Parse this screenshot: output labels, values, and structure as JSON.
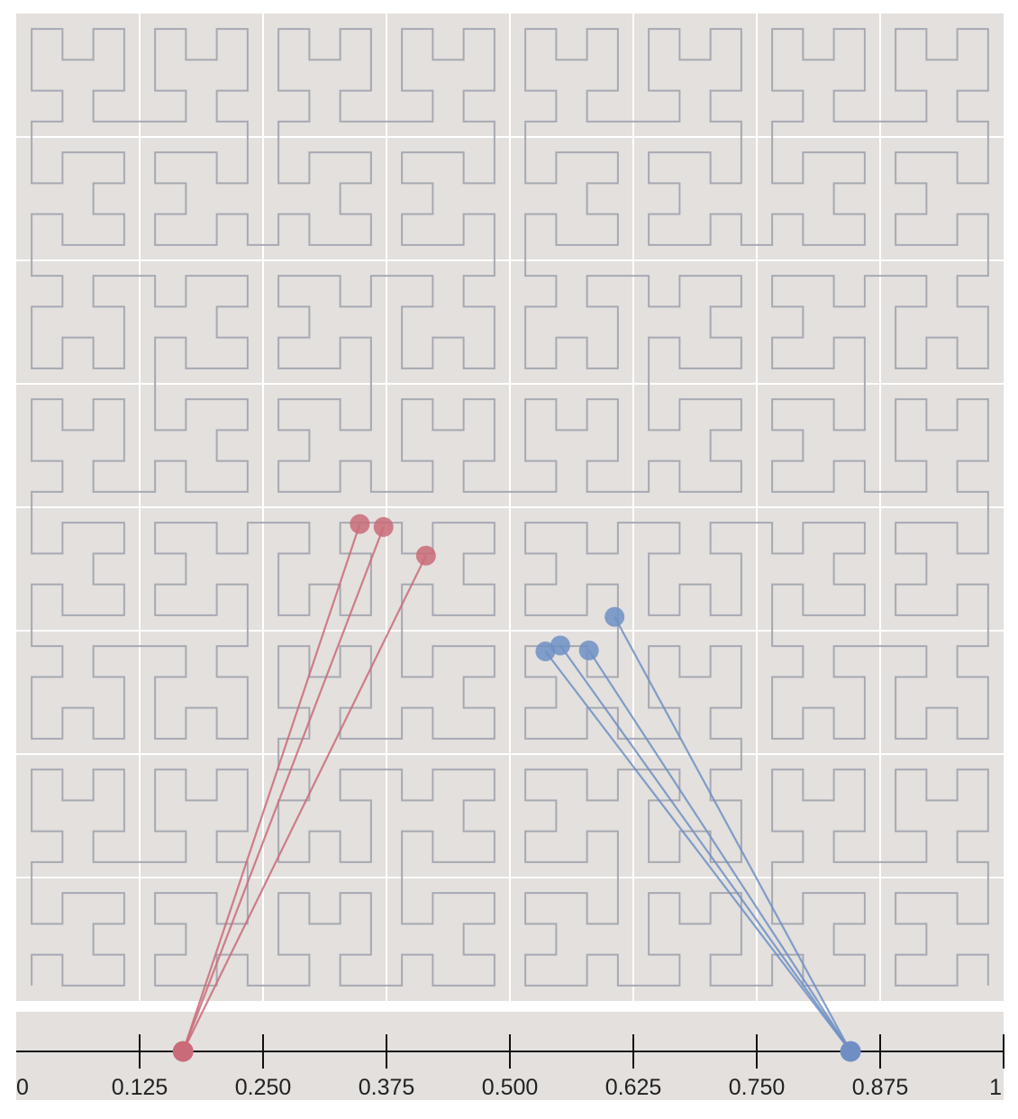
{
  "curve": {
    "type": "hilbert",
    "order": 5,
    "stroke_color": "#a7a9b3",
    "panel_color": "#e3e0dd",
    "grid_color": "#ffffff",
    "grid_divisions": 8
  },
  "axis": {
    "min": 0,
    "max": 1,
    "major_ticks": [
      0.125,
      0.25,
      0.375,
      0.5,
      0.625,
      0.75,
      0.875,
      1
    ],
    "tick_labels": [
      "0",
      "0.125",
      "0.250",
      "0.375",
      "0.500",
      "0.625",
      "0.750",
      "0.875",
      "1"
    ]
  },
  "groups": [
    {
      "name": "red",
      "color": "#c96b78",
      "line_position": 0.169,
      "points": [
        {
          "x": 0.348,
          "y": 0.483
        },
        {
          "x": 0.372,
          "y": 0.48
        },
        {
          "x": 0.415,
          "y": 0.451
        }
      ]
    },
    {
      "name": "blue",
      "color": "#6f8fc4",
      "line_position": 0.845,
      "points": [
        {
          "x": 0.536,
          "y": 0.354
        },
        {
          "x": 0.551,
          "y": 0.36
        },
        {
          "x": 0.58,
          "y": 0.355
        },
        {
          "x": 0.606,
          "y": 0.389
        }
      ]
    }
  ]
}
